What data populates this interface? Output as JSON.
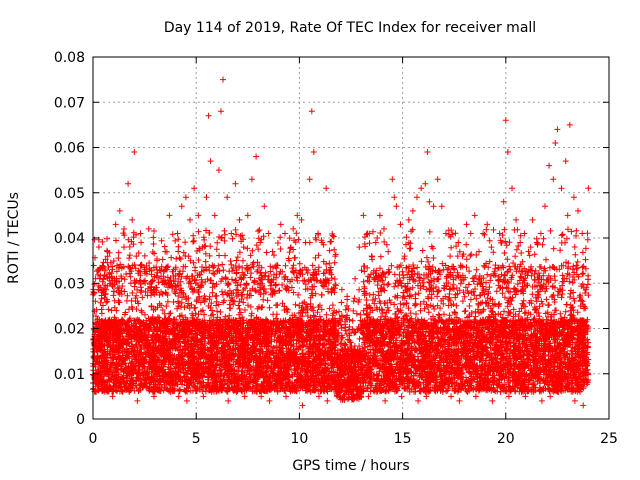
{
  "chart_data": {
    "type": "scatter",
    "title": "Day 114 of 2019, Rate Of TEC Index for receiver mall",
    "xlabel": "GPS time / hours",
    "ylabel": "ROTI / TECUs",
    "xlim": [
      0,
      25
    ],
    "ylim": [
      0,
      0.08
    ],
    "x_ticks": [
      0,
      5,
      10,
      15,
      20,
      25
    ],
    "x_tick_labels": [
      "0",
      "5",
      "10",
      "15",
      "20",
      "25"
    ],
    "y_ticks": [
      0,
      0.01,
      0.02,
      0.03,
      0.04,
      0.05,
      0.06,
      0.07,
      0.08
    ],
    "y_tick_labels": [
      "0",
      "0.01",
      "0.02",
      "0.03",
      "0.04",
      "0.05",
      "0.06",
      "0.07",
      "0.08"
    ],
    "grid": true,
    "marker": "plus",
    "color": "#ff0000",
    "points": {
      "x": [
        0.1,
        0.2,
        0.3,
        0.5,
        0.7,
        0.9,
        1.1,
        1.3,
        1.5,
        1.7,
        1.9,
        2.0,
        2.1,
        2.3,
        2.5,
        2.7,
        2.9,
        3.1,
        3.3,
        3.5,
        3.7,
        3.9,
        4.1,
        4.3,
        4.5,
        4.7,
        4.9,
        5.1,
        5.3,
        5.5,
        5.6,
        5.7,
        5.9,
        6.1,
        6.2,
        6.3,
        6.5,
        6.7,
        6.9,
        7.1,
        7.3,
        7.5,
        7.7,
        7.9,
        8.1,
        8.3,
        8.5,
        8.7,
        8.9,
        9.1,
        9.3,
        9.5,
        9.7,
        9.9,
        10.1,
        10.3,
        10.5,
        10.6,
        10.7,
        10.9,
        11.1,
        11.3,
        11.5,
        11.7,
        11.9,
        12.1,
        12.3,
        12.5,
        12.7,
        12.9,
        13.1,
        13.3,
        13.5,
        13.7,
        13.9,
        14.1,
        14.3,
        14.5,
        14.6,
        14.7,
        14.9,
        15.1,
        15.3,
        15.5,
        15.7,
        15.9,
        16.1,
        16.2,
        16.3,
        16.5,
        16.7,
        16.9,
        17.1,
        17.3,
        17.5,
        17.7,
        17.9,
        18.1,
        18.3,
        18.5,
        18.7,
        18.9,
        19.1,
        19.3,
        19.5,
        19.7,
        19.9,
        20.0,
        20.1,
        20.3,
        20.5,
        20.7,
        20.9,
        21.1,
        21.3,
        21.5,
        21.7,
        21.9,
        22.1,
        22.3,
        22.4,
        22.5,
        22.7,
        22.9,
        23.0,
        23.1,
        23.3,
        23.5,
        23.7,
        23.9,
        24.0,
        0.4,
        0.8,
        1.2,
        1.6,
        2.2,
        2.6,
        3.0,
        3.4,
        3.8,
        4.2,
        4.6,
        5.0,
        5.4,
        5.8,
        6.0,
        6.4,
        6.8,
        7.2,
        7.6,
        8.0,
        8.4,
        8.8,
        9.2,
        9.6,
        10.0,
        10.4,
        10.8,
        11.2,
        11.6,
        12.0,
        12.4,
        12.8,
        13.2,
        13.6,
        14.0,
        14.4,
        14.8,
        15.2,
        15.6,
        16.0,
        16.4,
        16.8,
        17.2,
        17.6,
        18.0,
        18.4,
        18.8,
        19.2,
        19.6,
        20.2,
        20.4,
        20.8,
        21.2,
        21.6,
        22.0,
        22.2,
        22.6,
        23.2,
        23.6,
        23.8,
        0.15,
        0.55,
        0.95,
        1.35,
        1.75,
        2.15,
        2.55,
        2.95,
        3.35,
        3.75,
        4.15,
        4.55,
        4.95,
        5.35,
        5.75,
        6.15,
        6.55,
        6.95,
        7.35,
        7.75,
        8.15,
        8.55,
        8.95,
        9.35,
        9.75,
        10.15,
        10.55,
        10.95,
        11.35,
        11.75,
        12.15,
        12.55,
        12.95,
        13.35,
        13.75,
        14.15,
        14.55,
        14.95,
        15.35,
        15.75,
        16.15,
        16.55,
        16.95,
        17.35,
        17.75,
        18.15,
        18.55,
        18.95,
        19.35,
        19.75,
        20.15,
        20.55,
        20.95,
        21.35,
        21.75,
        22.15,
        22.55,
        22.95,
        23.35,
        23.75
      ],
      "y": [
        0.012,
        0.021,
        0.033,
        0.028,
        0.037,
        0.024,
        0.043,
        0.046,
        0.038,
        0.052,
        0.044,
        0.059,
        0.036,
        0.041,
        0.033,
        0.042,
        0.028,
        0.035,
        0.031,
        0.037,
        0.045,
        0.033,
        0.041,
        0.047,
        0.049,
        0.044,
        0.051,
        0.045,
        0.038,
        0.049,
        0.067,
        0.057,
        0.045,
        0.055,
        0.068,
        0.075,
        0.049,
        0.041,
        0.052,
        0.044,
        0.038,
        0.045,
        0.053,
        0.058,
        0.039,
        0.047,
        0.041,
        0.037,
        0.032,
        0.043,
        0.041,
        0.035,
        0.042,
        0.045,
        0.044,
        0.039,
        0.053,
        0.068,
        0.059,
        0.041,
        0.039,
        0.051,
        0.033,
        0.028,
        0.021,
        0.018,
        0.025,
        0.019,
        0.031,
        0.038,
        0.045,
        0.041,
        0.036,
        0.039,
        0.045,
        0.042,
        0.037,
        0.053,
        0.049,
        0.047,
        0.043,
        0.036,
        0.044,
        0.046,
        0.049,
        0.051,
        0.052,
        0.059,
        0.048,
        0.047,
        0.053,
        0.047,
        0.041,
        0.036,
        0.033,
        0.039,
        0.036,
        0.043,
        0.041,
        0.045,
        0.037,
        0.041,
        0.043,
        0.038,
        0.034,
        0.041,
        0.048,
        0.066,
        0.059,
        0.051,
        0.044,
        0.039,
        0.041,
        0.037,
        0.044,
        0.039,
        0.041,
        0.047,
        0.056,
        0.053,
        0.061,
        0.064,
        0.051,
        0.057,
        0.045,
        0.065,
        0.049,
        0.046,
        0.041,
        0.029,
        0.051,
        0.016,
        0.019,
        0.011,
        0.014,
        0.009,
        0.017,
        0.013,
        0.011,
        0.016,
        0.012,
        0.014,
        0.009,
        0.018,
        0.013,
        0.008,
        0.021,
        0.012,
        0.009,
        0.014,
        0.011,
        0.016,
        0.013,
        0.01,
        0.018,
        0.012,
        0.016,
        0.015,
        0.009,
        0.013,
        0.011,
        0.008,
        0.012,
        0.01,
        0.014,
        0.011,
        0.016,
        0.009,
        0.015,
        0.012,
        0.013,
        0.017,
        0.011,
        0.014,
        0.01,
        0.012,
        0.015,
        0.009,
        0.013,
        0.016,
        0.011,
        0.014,
        0.012,
        0.017,
        0.009,
        0.016,
        0.013,
        0.011,
        0.015,
        0.012,
        0.01,
        0.006,
        0.008,
        0.005,
        0.007,
        0.006,
        0.004,
        0.008,
        0.005,
        0.007,
        0.006,
        0.005,
        0.004,
        0.007,
        0.005,
        0.006,
        0.008,
        0.004,
        0.006,
        0.005,
        0.007,
        0.005,
        0.004,
        0.006,
        0.005,
        0.007,
        0.003,
        0.006,
        0.005,
        0.004,
        0.007,
        0.005,
        0.006,
        0.008,
        0.005,
        0.006,
        0.004,
        0.007,
        0.005,
        0.006,
        0.004,
        0.005,
        0.007,
        0.006,
        0.005,
        0.004,
        0.006,
        0.005,
        0.007,
        0.004,
        0.006,
        0.005,
        0.007,
        0.005,
        0.006,
        0.004,
        0.005,
        0.006,
        0.007,
        0.004,
        0.003
      ]
    },
    "dense_band": {
      "x_start": 0.0,
      "x_end": 24.0,
      "mean": 0.014,
      "spread": 0.008,
      "density_per_hour": 420
    }
  }
}
